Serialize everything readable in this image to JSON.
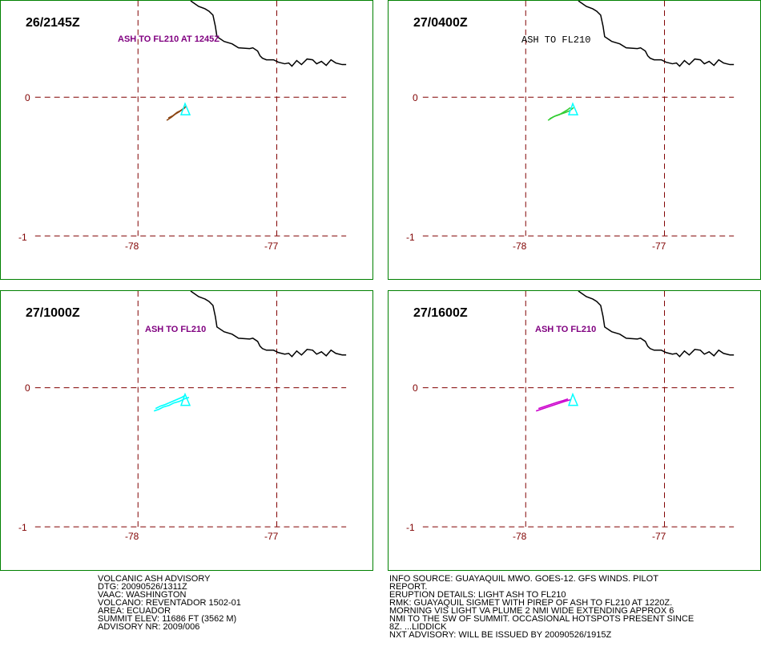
{
  "colors": {
    "panel_border": "#008000",
    "grid": "#800000",
    "coast": "#000000",
    "summit": "#00ffff"
  },
  "panels": [
    {
      "time": "26/2145Z",
      "label": "ASH TO FL210 AT 1245Z",
      "label_color": "#800080",
      "plume_color": "#8b4513"
    },
    {
      "time": "27/0400Z",
      "label": "ASH TO FL210",
      "label_color": "#000000",
      "plume_color": "#32cd32"
    },
    {
      "time": "27/1000Z",
      "label": "ASH TO FL210",
      "label_color": "#800080",
      "plume_color": "#00ffff"
    },
    {
      "time": "27/1600Z",
      "label": "ASH TO FL210",
      "label_color": "#800080",
      "plume_color": "#cc00cc"
    }
  ],
  "axes": {
    "lat_labels": [
      "0",
      "-1"
    ],
    "lon_labels": [
      "-78",
      "-77"
    ]
  },
  "advisory_left": [
    "VOLCANIC ASH ADVISORY",
    "DTG: 20090526/1311Z",
    "VAAC: WASHINGTON",
    "VOLCANO: REVENTADOR 1502-01",
    "AREA: ECUADOR",
    "SUMMIT ELEV: 11686 FT (3562 M)",
    "ADVISORY NR: 2009/006"
  ],
  "advisory_right": [
    "INFO SOURCE: GUAYAQUIL MWO. GOES-12. GFS WINDS. PILOT",
    "REPORT.",
    "ERUPTION DETAILS: LIGHT ASH TO FL210",
    "RMK: GUAYAQUIL SIGMET WITH PIREP OF ASH TO FL210 AT 1220Z.",
    "MORNING VIS LIGHT VA PLUME 2 NMI WIDE EXTENDING APPROX 6",
    "NMI TO THE SW OF SUMMIT. OCCASIONAL HOTSPOTS PRESENT SINCE",
    "8Z. ...LIDDICK",
    "NXT ADVISORY: WILL BE ISSUED BY 20090526/1915Z"
  ]
}
